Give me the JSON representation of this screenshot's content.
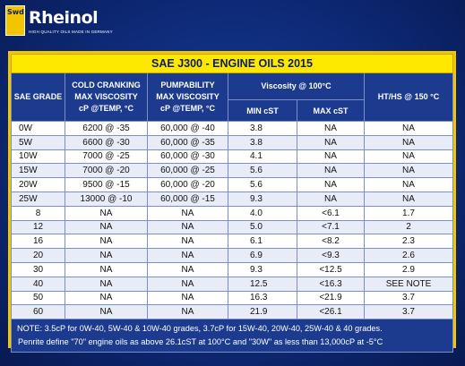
{
  "brand": {
    "name": "Rheinol",
    "badge": "Swd",
    "tagline": "HIGH QUALITY OILS MADE IN GERMANY"
  },
  "table": {
    "title": "SAE J300 - ENGINE OILS 2015",
    "headers": {
      "grade": "SAE GRADE",
      "cranking": [
        "COLD CRANKING",
        "MAX VISCOSITY",
        "cP @TEMP, °C"
      ],
      "pumpability": [
        "PUMPABILITY",
        "MAX VISCOSITY",
        "cP @TEMP, °C"
      ],
      "viscosity": "Viscosity @ 100°C",
      "min": "MIN cST",
      "max": "MAX cST",
      "hths": "HT/HS @ 150  °C"
    },
    "rows": [
      {
        "grade": "0W",
        "cranking": "6200 @ -35",
        "pump": "60,000 @ -40",
        "min": "3.8",
        "max": "NA",
        "hths": "NA"
      },
      {
        "grade": "5W",
        "cranking": "6600 @ -30",
        "pump": "60,000 @ -35",
        "min": "3.8",
        "max": "NA",
        "hths": "NA"
      },
      {
        "grade": "10W",
        "cranking": "7000 @ -25",
        "pump": "60,000 @ -30",
        "min": "4.1",
        "max": "NA",
        "hths": "NA"
      },
      {
        "grade": "15W",
        "cranking": "7000 @ -20",
        "pump": "60,000 @ -25",
        "min": "5.6",
        "max": "NA",
        "hths": "NA"
      },
      {
        "grade": "20W",
        "cranking": "9500 @ -15",
        "pump": "60,000 @ -20",
        "min": "5.6",
        "max": "NA",
        "hths": "NA"
      },
      {
        "grade": "25W",
        "cranking": "13000 @ -10",
        "pump": "60,000 @ -15",
        "min": "9.3",
        "max": "NA",
        "hths": "NA"
      },
      {
        "grade": "8",
        "cranking": "NA",
        "pump": "NA",
        "min": "4.0",
        "max": "<6.1",
        "hths": "1.7"
      },
      {
        "grade": "12",
        "cranking": "NA",
        "pump": "NA",
        "min": "5.0",
        "max": "<7.1",
        "hths": "2"
      },
      {
        "grade": "16",
        "cranking": "NA",
        "pump": "NA",
        "min": "6.1",
        "max": "<8.2",
        "hths": "2.3"
      },
      {
        "grade": "20",
        "cranking": "NA",
        "pump": "NA",
        "min": "6.9",
        "max": "<9.3",
        "hths": "2.6"
      },
      {
        "grade": "30",
        "cranking": "NA",
        "pump": "NA",
        "min": "9.3",
        "max": "<12.5",
        "hths": "2.9"
      },
      {
        "grade": "40",
        "cranking": "NA",
        "pump": "NA",
        "min": "12.5",
        "max": "<16.3",
        "hths": "SEE NOTE"
      },
      {
        "grade": "50",
        "cranking": "NA",
        "pump": "NA",
        "min": "16.3",
        "max": "<21.9",
        "hths": "3.7"
      },
      {
        "grade": "60",
        "cranking": "NA",
        "pump": "NA",
        "min": "21.9",
        "max": "<26.1",
        "hths": "3.7"
      }
    ],
    "notes": [
      "NOTE: 3.5cP for 0W-40, 5W-40 & 10W-40 grades, 3.7cP for 15W-40, 20W-40, 25W-40 & 40 grades.",
      "Penrite define \"70\" engine oils as above 26.1cST at 100°C and \"30W\" as less than 13,000cP at -5°C"
    ]
  },
  "colors": {
    "background": "#0e2a78",
    "frame": "#f3c602",
    "header": "#1c3a8e",
    "title_bar": "#ffe800"
  }
}
